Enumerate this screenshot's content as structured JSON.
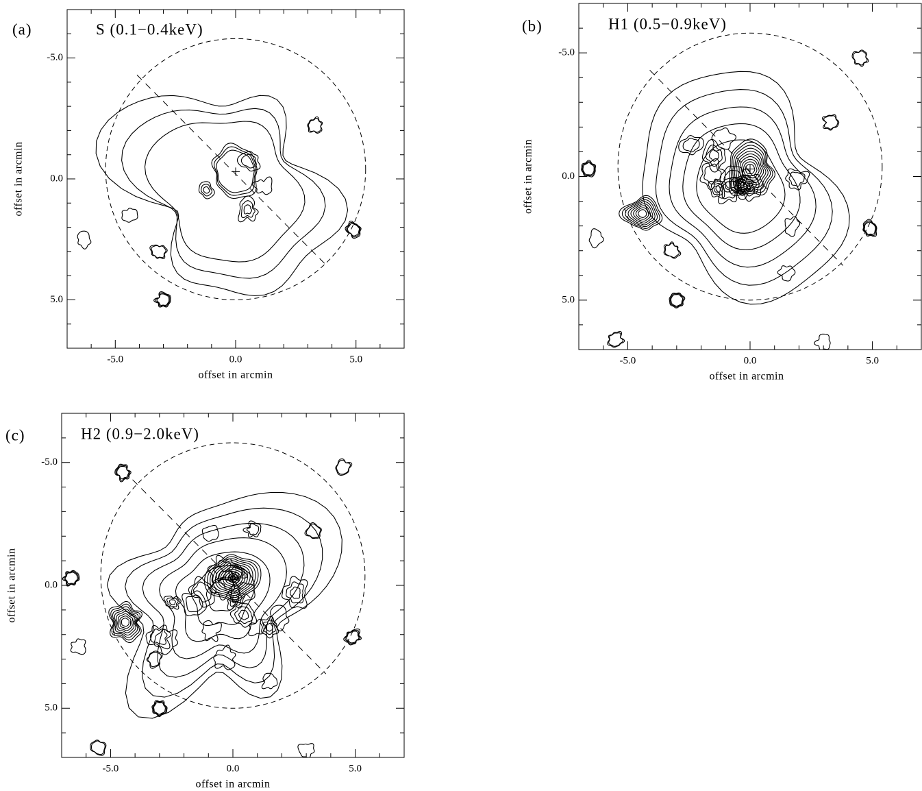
{
  "chart_data": [
    {
      "type": "contour",
      "panel_label": "(a)",
      "title": "S (0.1−0.4keV)",
      "xlabel": "offset in arcmin",
      "ylabel": "offset in arcmin",
      "xlim": [
        -7,
        7
      ],
      "ylim": [
        7,
        -7
      ],
      "xticks": [
        {
          "value": -5,
          "label": "-5.0"
        },
        {
          "value": 0,
          "label": "0.0"
        },
        {
          "value": 5,
          "label": "5.0"
        }
      ],
      "yticks": [
        {
          "value": -5,
          "label": "-5.0"
        },
        {
          "value": 0,
          "label": "0.0"
        },
        {
          "value": 5,
          "label": "5.0"
        }
      ],
      "minor_ticks": [
        -6,
        -4,
        -3,
        -2,
        -1,
        1,
        2,
        3,
        4,
        6
      ]
    },
    {
      "type": "contour",
      "panel_label": "(b)",
      "title": "H1 (0.5−0.9keV)",
      "xlabel": "offset in arcmin",
      "ylabel": "offset in arcmin",
      "xlim": [
        -7,
        7
      ],
      "ylim": [
        7,
        -7
      ],
      "xticks": [
        {
          "value": -5,
          "label": "-5.0"
        },
        {
          "value": 0,
          "label": "0.0"
        },
        {
          "value": 5,
          "label": "5.0"
        }
      ],
      "yticks": [
        {
          "value": -5,
          "label": "-5.0"
        },
        {
          "value": 0,
          "label": "0.0"
        },
        {
          "value": 5,
          "label": "5.0"
        }
      ],
      "minor_ticks": [
        -6,
        -4,
        -3,
        -2,
        -1,
        1,
        2,
        3,
        4,
        6
      ]
    },
    {
      "type": "contour",
      "panel_label": "(c)",
      "title": "H2 (0.9−2.0keV)",
      "xlabel": "offset in arcmin",
      "ylabel": "offset in arcmin",
      "xlim": [
        -7,
        7
      ],
      "ylim": [
        7,
        -7
      ],
      "xticks": [
        {
          "value": -5,
          "label": "-5.0"
        },
        {
          "value": 0,
          "label": "0.0"
        },
        {
          "value": 5,
          "label": "5.0"
        }
      ],
      "yticks": [
        {
          "value": -5,
          "label": "-5.0"
        },
        {
          "value": 0,
          "label": "0.0"
        },
        {
          "value": 5,
          "label": "5.0"
        }
      ],
      "minor_ticks": [
        -6,
        -4,
        -3,
        -2,
        -1,
        1,
        2,
        3,
        4,
        6
      ]
    }
  ]
}
